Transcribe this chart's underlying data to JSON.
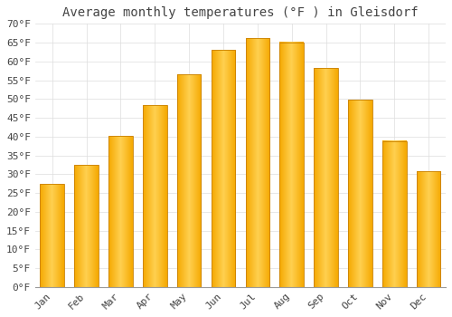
{
  "title": "Average monthly temperatures (°F ) in Gleisdorf",
  "months": [
    "Jan",
    "Feb",
    "Mar",
    "Apr",
    "May",
    "Jun",
    "Jul",
    "Aug",
    "Sep",
    "Oct",
    "Nov",
    "Dec"
  ],
  "values": [
    27.3,
    32.4,
    40.1,
    48.4,
    56.5,
    63.1,
    66.2,
    65.1,
    58.3,
    49.8,
    38.8,
    30.7
  ],
  "bar_color_light": "#FFD050",
  "bar_color_dark": "#F5A800",
  "bar_edge_color": "#C88000",
  "background_color": "#FFFFFF",
  "grid_color": "#DDDDDD",
  "text_color": "#444444",
  "ylim": [
    0,
    70
  ],
  "ytick_step": 5,
  "title_fontsize": 10,
  "tick_fontsize": 8,
  "font_family": "monospace"
}
